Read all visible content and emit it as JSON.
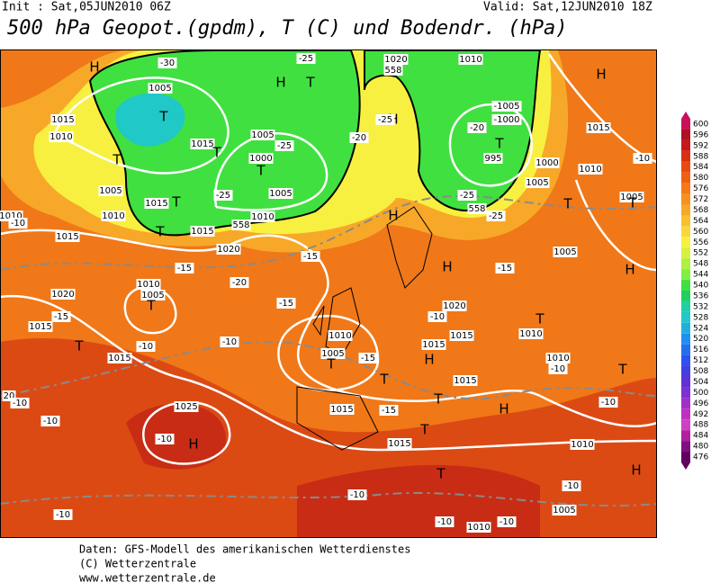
{
  "header": {
    "init": "Init : Sat,05JUN2010 06Z",
    "valid": "Valid: Sat,12JUN2010 18Z",
    "title": "500 hPa Geopot.(gpdm), T (C) und Bodendr. (hPa)"
  },
  "colorbar": {
    "levels": [
      600,
      596,
      592,
      588,
      584,
      580,
      576,
      572,
      568,
      564,
      560,
      556,
      552,
      548,
      544,
      540,
      536,
      532,
      528,
      524,
      520,
      516,
      512,
      508,
      504,
      500,
      496,
      492,
      488,
      484,
      480,
      476
    ],
    "colors": [
      "#c8105a",
      "#b01020",
      "#c81818",
      "#d83010",
      "#e84a10",
      "#f06010",
      "#f87818",
      "#f89020",
      "#f8a828",
      "#f8c030",
      "#f8d838",
      "#f8f040",
      "#d8f040",
      "#b0f040",
      "#80f040",
      "#40e040",
      "#20d060",
      "#20d0a0",
      "#20c8c8",
      "#20b0e0",
      "#2090f0",
      "#2070f0",
      "#3050f0",
      "#4040e0",
      "#6030d8",
      "#8030d0",
      "#a030c8",
      "#c030c0",
      "#d040c0",
      "#b020a0",
      "#801080",
      "#600060"
    ]
  },
  "map_labels": [
    "H",
    "H",
    "T",
    "1005",
    "-30",
    "-25",
    "558",
    "1020",
    "1010",
    "H",
    "-25",
    "H",
    "T",
    "1015",
    "1010",
    "T",
    "1015",
    "T",
    "1005",
    "-25",
    "1000",
    "T",
    "1005",
    "-25",
    "T",
    "1015",
    "1005",
    "1010",
    "558",
    "1015",
    "1010",
    "T",
    "-20",
    "-1005",
    "-1000",
    "-20",
    "T",
    "995",
    "1000",
    "1005",
    "T",
    "-25",
    "-25",
    "558",
    "H",
    "1015",
    "1010",
    "-10",
    "1005",
    "T",
    "1010",
    "-10",
    "1015",
    "H",
    "1005",
    "1020",
    "-15",
    "-15",
    "-20",
    "1020",
    "1010",
    "1005",
    "T",
    "1015",
    "-15",
    "T",
    "-10",
    "-10",
    "-15",
    "1010",
    "1005",
    "T",
    "-15",
    "T",
    "H",
    "-15",
    "1020",
    "-10",
    "T",
    "1010",
    "1015",
    "H",
    "1015",
    "1015",
    "T",
    "H",
    "1010",
    "-10",
    "T",
    "1025",
    "-10",
    "H",
    "-15",
    "T",
    "1015",
    "1015",
    "-10",
    "-10",
    "1010",
    "T",
    "H",
    "-10",
    "-10",
    "-10",
    "1010",
    "1005",
    "-10",
    "-10",
    "20",
    "-10",
    "1015"
  ],
  "footer": [
    "Daten: GFS-Modell des amerikanischen Wetterdienstes",
    "(C) Wetterzentrale",
    "www.wetterzentrale.de"
  ]
}
